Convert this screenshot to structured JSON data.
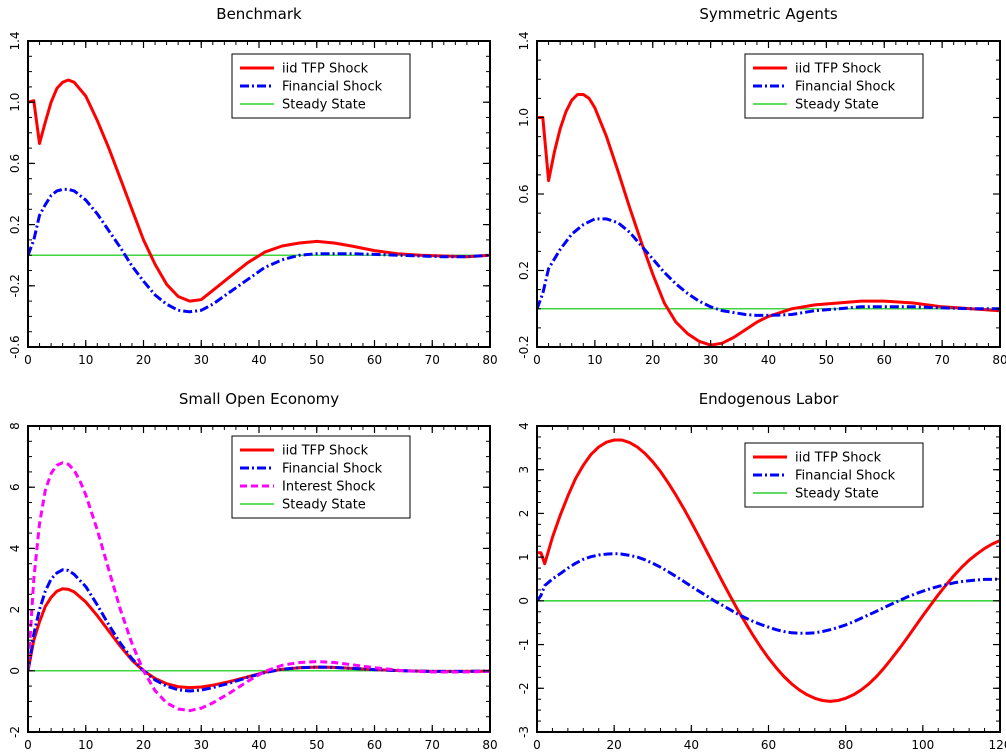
{
  "chart_data": [
    {
      "type": "line",
      "title": "Benchmark",
      "xlim": [
        0,
        80
      ],
      "ylim": [
        -0.6,
        1.4
      ],
      "xticks": [
        "0",
        "10",
        "20",
        "30",
        "40",
        "50",
        "60",
        "70",
        "80"
      ],
      "yticks": [
        "-0.6",
        "-0.2",
        "0.2",
        "0.6",
        "1.0",
        "1.4"
      ],
      "legend_position": "top-right",
      "series": [
        {
          "name": "iid TFP Shock",
          "color": "#ff0000",
          "style": "solid",
          "x": [
            0,
            1,
            2,
            3,
            4,
            5,
            6,
            7,
            8,
            10,
            12,
            14,
            16,
            18,
            20,
            22,
            24,
            26,
            28,
            30,
            32,
            35,
            38,
            41,
            44,
            47,
            50,
            53,
            56,
            60,
            64,
            68,
            72,
            76,
            80
          ],
          "y": [
            1.0,
            1.01,
            0.73,
            0.87,
            1.0,
            1.09,
            1.13,
            1.145,
            1.13,
            1.04,
            0.88,
            0.7,
            0.5,
            0.3,
            0.1,
            -0.06,
            -0.19,
            -0.27,
            -0.3,
            -0.29,
            -0.23,
            -0.14,
            -0.05,
            0.02,
            0.06,
            0.08,
            0.09,
            0.08,
            0.06,
            0.03,
            0.01,
            0.0,
            -0.005,
            -0.01,
            0.0
          ]
        },
        {
          "name": "Financial Shock",
          "color": "#0000ff",
          "style": "dashdot",
          "x": [
            0,
            1,
            2,
            3,
            4,
            5,
            6,
            7,
            8,
            10,
            12,
            14,
            16,
            18,
            20,
            22,
            24,
            26,
            28,
            30,
            32,
            35,
            38,
            41,
            44,
            47,
            50,
            53,
            56,
            60,
            64,
            68,
            72,
            76,
            80
          ],
          "y": [
            0.0,
            0.1,
            0.26,
            0.33,
            0.39,
            0.42,
            0.43,
            0.43,
            0.42,
            0.36,
            0.27,
            0.16,
            0.05,
            -0.07,
            -0.17,
            -0.26,
            -0.32,
            -0.36,
            -0.37,
            -0.36,
            -0.32,
            -0.24,
            -0.16,
            -0.08,
            -0.03,
            0.0,
            0.01,
            0.01,
            0.01,
            0.005,
            0.0,
            -0.005,
            -0.01,
            -0.01,
            0.0
          ]
        },
        {
          "name": "Steady State",
          "color": "#00c800",
          "style": "thin",
          "x": [
            0,
            80
          ],
          "y": [
            0,
            0
          ]
        }
      ]
    },
    {
      "type": "line",
      "title": "Symmetric Agents",
      "xlim": [
        0,
        80
      ],
      "ylim": [
        -0.2,
        1.4
      ],
      "xticks": [
        "0",
        "10",
        "20",
        "30",
        "40",
        "50",
        "60",
        "70",
        "80"
      ],
      "yticks": [
        "-0.2",
        "0.2",
        "0.6",
        "1.0",
        "1.4"
      ],
      "legend_position": "top-right",
      "series": [
        {
          "name": "iid TFP Shock",
          "color": "#ff0000",
          "style": "solid",
          "x": [
            0,
            1,
            2,
            3,
            4,
            5,
            6,
            7,
            8,
            9,
            10,
            12,
            14,
            16,
            18,
            20,
            22,
            24,
            26,
            28,
            30,
            32,
            34,
            36,
            38,
            40,
            44,
            48,
            52,
            56,
            60,
            65,
            70,
            75,
            80
          ],
          "y": [
            1.0,
            1.0,
            0.67,
            0.82,
            0.94,
            1.03,
            1.09,
            1.12,
            1.12,
            1.1,
            1.05,
            0.9,
            0.72,
            0.53,
            0.35,
            0.18,
            0.03,
            -0.07,
            -0.13,
            -0.17,
            -0.19,
            -0.18,
            -0.15,
            -0.11,
            -0.07,
            -0.04,
            0.0,
            0.02,
            0.03,
            0.04,
            0.04,
            0.03,
            0.01,
            0.0,
            -0.01
          ]
        },
        {
          "name": "Financial Shock",
          "color": "#0000ff",
          "style": "dashdot",
          "x": [
            0,
            1,
            2,
            4,
            6,
            8,
            10,
            12,
            14,
            16,
            18,
            20,
            22,
            24,
            26,
            28,
            30,
            32,
            34,
            36,
            38,
            40,
            44,
            48,
            52,
            56,
            60,
            65,
            70,
            75,
            80
          ],
          "y": [
            0.0,
            0.08,
            0.21,
            0.31,
            0.39,
            0.44,
            0.47,
            0.47,
            0.45,
            0.4,
            0.33,
            0.26,
            0.19,
            0.13,
            0.08,
            0.04,
            0.01,
            -0.01,
            -0.02,
            -0.03,
            -0.035,
            -0.035,
            -0.03,
            -0.01,
            0.0,
            0.01,
            0.01,
            0.01,
            0.005,
            0.0,
            0.0
          ]
        },
        {
          "name": "Steady State",
          "color": "#00c800",
          "style": "thin",
          "x": [
            0,
            80
          ],
          "y": [
            0,
            0
          ]
        }
      ]
    },
    {
      "type": "line",
      "title": "Small Open Economy",
      "xlim": [
        0,
        80
      ],
      "ylim": [
        -2,
        8
      ],
      "xticks": [
        "0",
        "10",
        "20",
        "30",
        "40",
        "50",
        "60",
        "70",
        "80"
      ],
      "yticks": [
        "-2",
        "0",
        "2",
        "4",
        "6",
        "8"
      ],
      "legend_position": "top-right",
      "series": [
        {
          "name": "iid TFP Shock",
          "color": "#ff0000",
          "style": "solid",
          "x": [
            0,
            1,
            2,
            3,
            4,
            5,
            6,
            7,
            8,
            10,
            12,
            14,
            16,
            18,
            20,
            22,
            24,
            26,
            28,
            30,
            32,
            35,
            38,
            41,
            44,
            47,
            50,
            53,
            56,
            60,
            65,
            70,
            75,
            80
          ],
          "y": [
            0.0,
            1.0,
            1.6,
            2.1,
            2.4,
            2.6,
            2.68,
            2.66,
            2.58,
            2.25,
            1.8,
            1.3,
            0.8,
            0.35,
            0.0,
            -0.25,
            -0.42,
            -0.52,
            -0.55,
            -0.53,
            -0.47,
            -0.35,
            -0.2,
            -0.05,
            0.05,
            0.1,
            0.12,
            0.11,
            0.08,
            0.04,
            0.0,
            -0.02,
            -0.02,
            -0.01
          ]
        },
        {
          "name": "Financial Shock",
          "color": "#0000ff",
          "style": "dashdot",
          "x": [
            0,
            1,
            2,
            3,
            4,
            5,
            6,
            7,
            8,
            10,
            12,
            14,
            16,
            18,
            20,
            22,
            24,
            26,
            28,
            30,
            32,
            35,
            38,
            41,
            44,
            47,
            50,
            53,
            56,
            60,
            65,
            70,
            75,
            80
          ],
          "y": [
            0.0,
            1.2,
            2.0,
            2.6,
            3.0,
            3.2,
            3.3,
            3.28,
            3.15,
            2.75,
            2.15,
            1.5,
            0.9,
            0.4,
            0.0,
            -0.3,
            -0.5,
            -0.62,
            -0.66,
            -0.63,
            -0.55,
            -0.4,
            -0.22,
            -0.06,
            0.05,
            0.1,
            0.12,
            0.11,
            0.08,
            0.04,
            0.0,
            -0.02,
            -0.02,
            -0.01
          ]
        },
        {
          "name": "Interest Shock",
          "color": "#ff00ff",
          "style": "dashed",
          "x": [
            0,
            1,
            2,
            3,
            4,
            5,
            6,
            7,
            8,
            9,
            10,
            12,
            14,
            16,
            18,
            20,
            22,
            24,
            26,
            28,
            30,
            32,
            35,
            38,
            41,
            44,
            47,
            50,
            53,
            56,
            60,
            65,
            70,
            75,
            80
          ],
          "y": [
            0.0,
            3.0,
            4.8,
            5.9,
            6.45,
            6.72,
            6.8,
            6.75,
            6.55,
            6.2,
            5.75,
            4.6,
            3.3,
            2.0,
            0.9,
            0.0,
            -0.65,
            -1.05,
            -1.25,
            -1.3,
            -1.22,
            -1.05,
            -0.72,
            -0.35,
            -0.02,
            0.18,
            0.27,
            0.3,
            0.27,
            0.2,
            0.1,
            0.0,
            -0.04,
            -0.04,
            -0.02
          ]
        },
        {
          "name": "Steady State",
          "color": "#00c800",
          "style": "thin",
          "x": [
            0,
            80
          ],
          "y": [
            0,
            0
          ]
        }
      ]
    },
    {
      "type": "line",
      "title": "Endogenous Labor",
      "xlim": [
        0,
        120
      ],
      "ylim": [
        -3,
        4
      ],
      "xticks": [
        "0",
        "20",
        "40",
        "60",
        "80",
        "100",
        "120"
      ],
      "yticks": [
        "-3",
        "-2",
        "-1",
        "0",
        "1",
        "2",
        "3",
        "4"
      ],
      "legend_position": "top-right",
      "series": [
        {
          "name": "iid TFP Shock",
          "color": "#ff0000",
          "style": "solid",
          "x": [
            0,
            1,
            2,
            3,
            4,
            6,
            8,
            10,
            12,
            14,
            16,
            18,
            20,
            22,
            24,
            26,
            28,
            30,
            32,
            34,
            36,
            38,
            40,
            42,
            44,
            46,
            48,
            50,
            52,
            54,
            56,
            58,
            60,
            62,
            64,
            66,
            68,
            70,
            72,
            74,
            76,
            78,
            80,
            82,
            84,
            86,
            88,
            90,
            92,
            94,
            96,
            98,
            100,
            102,
            104,
            106,
            108,
            110,
            112,
            114,
            116,
            118,
            120
          ],
          "y": [
            1.1,
            1.1,
            0.85,
            1.15,
            1.45,
            1.95,
            2.4,
            2.8,
            3.1,
            3.35,
            3.52,
            3.63,
            3.68,
            3.68,
            3.62,
            3.52,
            3.37,
            3.18,
            2.96,
            2.7,
            2.42,
            2.12,
            1.8,
            1.47,
            1.13,
            0.79,
            0.45,
            0.12,
            -0.2,
            -0.5,
            -0.79,
            -1.06,
            -1.31,
            -1.53,
            -1.73,
            -1.9,
            -2.04,
            -2.15,
            -2.23,
            -2.28,
            -2.3,
            -2.28,
            -2.23,
            -2.15,
            -2.04,
            -1.9,
            -1.73,
            -1.53,
            -1.31,
            -1.08,
            -0.84,
            -0.59,
            -0.34,
            -0.1,
            0.14,
            0.36,
            0.57,
            0.76,
            0.93,
            1.07,
            1.2,
            1.3,
            1.38
          ]
        },
        {
          "name": "Financial Shock",
          "color": "#0000ff",
          "style": "dashdot",
          "x": [
            0,
            1,
            2,
            4,
            6,
            8,
            10,
            12,
            14,
            16,
            18,
            20,
            22,
            24,
            26,
            28,
            30,
            32,
            34,
            36,
            38,
            40,
            42,
            44,
            46,
            48,
            50,
            52,
            54,
            56,
            58,
            60,
            62,
            64,
            66,
            68,
            70,
            72,
            74,
            76,
            78,
            80,
            82,
            84,
            86,
            88,
            90,
            92,
            94,
            96,
            98,
            100,
            102,
            104,
            106,
            108,
            110,
            112,
            114,
            116,
            118,
            120
          ],
          "y": [
            0.0,
            0.12,
            0.35,
            0.5,
            0.62,
            0.75,
            0.86,
            0.95,
            1.01,
            1.05,
            1.07,
            1.08,
            1.07,
            1.04,
            1.0,
            0.94,
            0.86,
            0.77,
            0.67,
            0.56,
            0.45,
            0.33,
            0.22,
            0.11,
            0.0,
            -0.1,
            -0.2,
            -0.3,
            -0.39,
            -0.47,
            -0.54,
            -0.6,
            -0.66,
            -0.7,
            -0.73,
            -0.74,
            -0.74,
            -0.73,
            -0.7,
            -0.66,
            -0.61,
            -0.55,
            -0.48,
            -0.4,
            -0.32,
            -0.24,
            -0.15,
            -0.07,
            0.01,
            0.09,
            0.16,
            0.22,
            0.28,
            0.33,
            0.37,
            0.41,
            0.44,
            0.46,
            0.48,
            0.49,
            0.49,
            0.5
          ]
        },
        {
          "name": "Steady State",
          "color": "#00c800",
          "style": "thin",
          "x": [
            0,
            120
          ],
          "y": [
            0,
            0
          ]
        }
      ]
    }
  ]
}
